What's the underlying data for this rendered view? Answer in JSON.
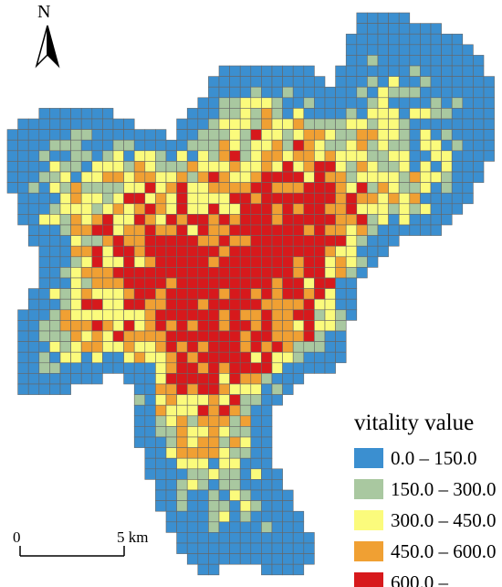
{
  "north_arrow": {
    "label": "N"
  },
  "legend": {
    "title": "vitality value",
    "items": [
      {
        "label": "0.0 – 150.0",
        "color": "#3b8fd0"
      },
      {
        "label": "150.0 – 300.0",
        "color": "#a9c8a0"
      },
      {
        "label": "300.0 – 450.0",
        "color": "#fbfb7c"
      },
      {
        "label": "450.0 – 600.0",
        "color": "#f0a033"
      },
      {
        "label": "600.0 –",
        "color": "#d7191c"
      }
    ]
  },
  "scale_bar": {
    "start_label": "0",
    "end_label": "5 km"
  },
  "colors": {
    "grid_line": "#666666",
    "background": "#ffffff"
  }
}
